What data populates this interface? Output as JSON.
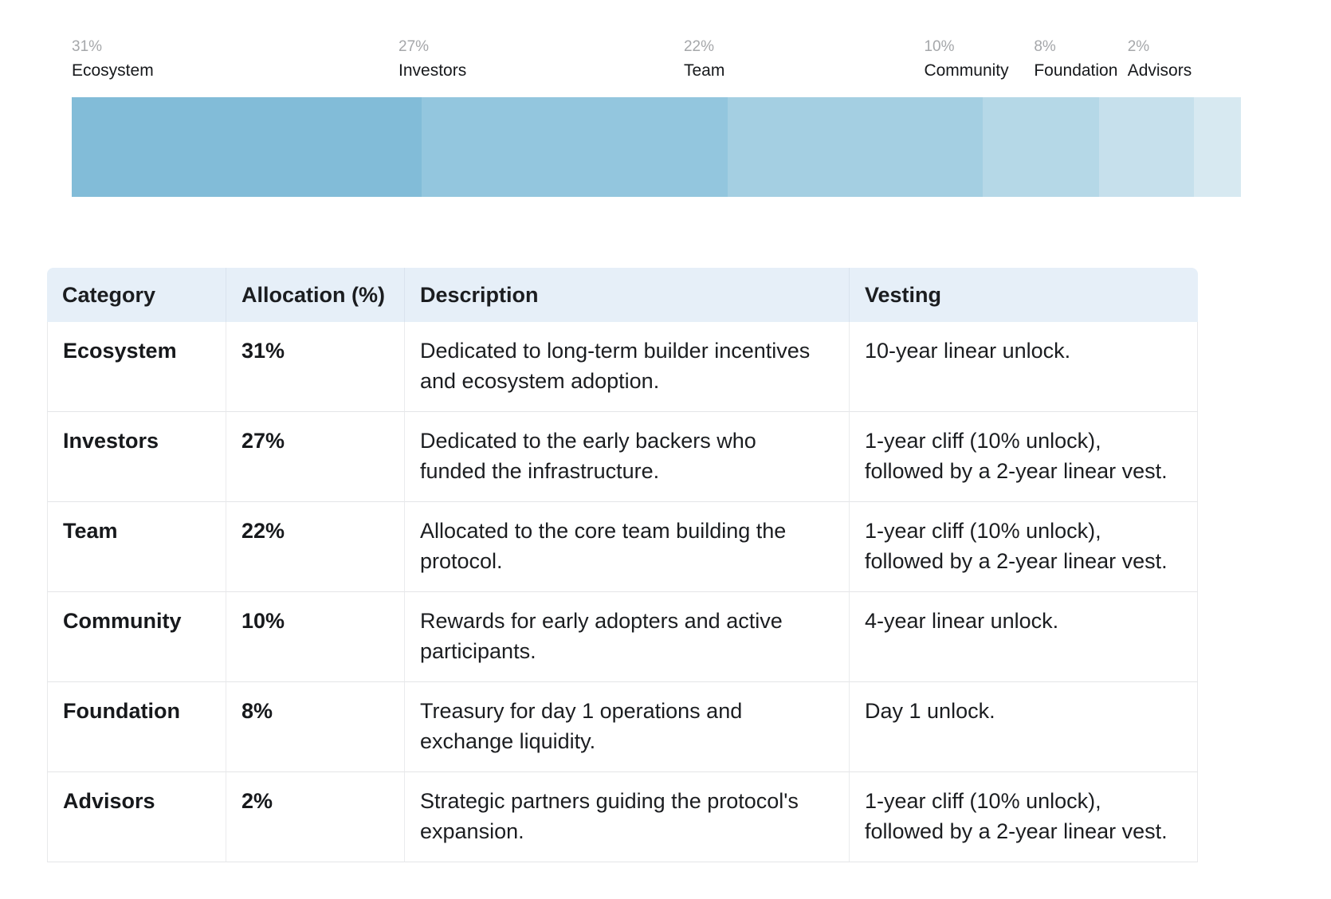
{
  "chart_data": {
    "type": "bar",
    "orientation": "horizontal-stacked",
    "title": "",
    "categories": [
      "Ecosystem",
      "Investors",
      "Team",
      "Community",
      "Foundation",
      "Advisors"
    ],
    "values": [
      31,
      27,
      22,
      10,
      8,
      2
    ],
    "unit": "%",
    "colors": [
      "#82bcd8",
      "#93c6de",
      "#a4cfe2",
      "#b5d8e7",
      "#c6e0ec",
      "#d7e9f1"
    ],
    "layout": {
      "labels_above": true,
      "axes": "none",
      "grid": false,
      "legend": "none",
      "display_width_pct": [
        29.9,
        26.2,
        21.8,
        10.0,
        8.1,
        4.0
      ],
      "label_offset_pct": [
        0,
        27.95,
        52.35,
        72.9,
        82.3,
        90.3
      ]
    }
  },
  "table": {
    "headers": [
      "Category",
      "Allocation (%)",
      "Description",
      "Vesting"
    ],
    "rows": [
      {
        "category": "Ecosystem",
        "allocation": "31%",
        "description": "Dedicated to long-term builder incentives and ecosystem adoption.",
        "vesting": "10-year linear unlock."
      },
      {
        "category": "Investors",
        "allocation": "27%",
        "description": "Dedicated to the early backers who funded the infrastructure.",
        "vesting": "1-year cliff (10% unlock), followed by a 2-year linear vest."
      },
      {
        "category": "Team",
        "allocation": "22%",
        "description": "Allocated to the core team building the protocol.",
        "vesting": "1-year cliff (10% unlock), followed by a 2-year linear vest."
      },
      {
        "category": "Community",
        "allocation": "10%",
        "description": "Rewards for early adopters and active participants.",
        "vesting": "4-year linear unlock."
      },
      {
        "category": "Foundation",
        "allocation": "8%",
        "description": "Treasury for day 1 operations and exchange liquidity.",
        "vesting": "Day 1 unlock."
      },
      {
        "category": "Advisors",
        "allocation": "2%",
        "description": "Strategic partners guiding the protocol's expansion.",
        "vesting": "1-year cliff (10% unlock), followed by a 2-year linear vest."
      }
    ]
  },
  "colors": {
    "page_background": "#ffffff",
    "table_header_background": "#e6eff8",
    "table_border": "#e4e5e7",
    "text": "#17191c",
    "percent_label_text": "#a5a7aa"
  }
}
